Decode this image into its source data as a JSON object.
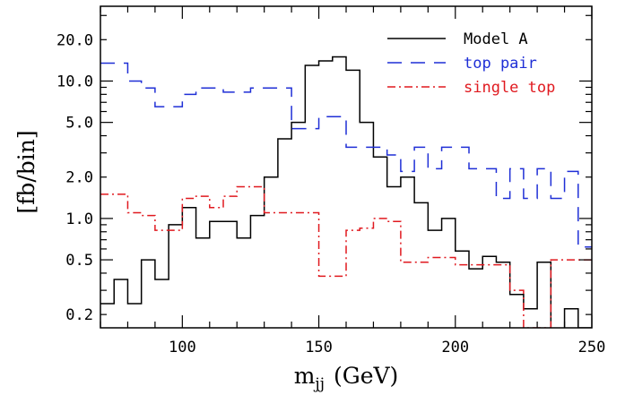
{
  "chart_data": {
    "type": "line",
    "title": "",
    "xlabel": "m_jj (GeV)",
    "xlabel_main": "m",
    "xlabel_sub": "jj",
    "xlabel_unit": "(GeV)",
    "ylabel": "[fb/bin]",
    "xlim": [
      70,
      250
    ],
    "ylim": [
      0.16,
      35
    ],
    "yscale": "log",
    "grid": false,
    "legend_position": "top-right",
    "x_ticks": [
      100,
      150,
      200,
      250
    ],
    "x_tick_labels": [
      "100",
      "150",
      "200",
      "250"
    ],
    "y_ticks": [
      0.2,
      0.5,
      1.0,
      2.0,
      5.0,
      10.0,
      20.0
    ],
    "y_tick_labels": [
      "0.2",
      "0.5",
      "1.0",
      "2.0",
      "5.0",
      "10.0",
      "20.0"
    ],
    "bin_width": 5,
    "bin_edges_start": 70,
    "series": [
      {
        "name": "Model A",
        "style": "solid",
        "color": "#000000",
        "values": [
          0.24,
          0.36,
          0.24,
          0.5,
          0.36,
          0.9,
          1.2,
          0.72,
          0.95,
          0.95,
          0.72,
          1.05,
          2.0,
          3.8,
          5.0,
          13.0,
          14.0,
          15.0,
          12.0,
          5.0,
          2.8,
          1.7,
          2.0,
          1.3,
          0.82,
          1.0,
          0.58,
          0.43,
          0.53,
          0.48,
          0.28,
          0.22,
          0.48,
          0.14,
          0.22,
          0.16
        ]
      },
      {
        "name": "top pair",
        "style": "dashed",
        "color": "#1f2fd6",
        "values": [
          13.5,
          13.5,
          10.0,
          8.9,
          6.5,
          6.5,
          8.0,
          8.9,
          8.9,
          8.3,
          8.3,
          8.9,
          8.9,
          8.9,
          4.5,
          4.5,
          5.5,
          5.5,
          3.3,
          3.3,
          3.3,
          2.9,
          2.2,
          3.3,
          2.3,
          3.3,
          3.3,
          2.3,
          2.3,
          1.4,
          2.3,
          1.4,
          2.3,
          1.4,
          2.2,
          0.62
        ]
      },
      {
        "name": "single top",
        "style": "dash-dot",
        "color": "#e0191f",
        "values": [
          1.5,
          1.5,
          1.1,
          1.05,
          0.82,
          0.82,
          1.4,
          1.45,
          1.2,
          1.45,
          1.7,
          1.7,
          1.1,
          1.1,
          1.1,
          1.1,
          0.38,
          0.38,
          0.82,
          0.85,
          1.0,
          0.95,
          0.48,
          0.48,
          0.52,
          0.52,
          0.46,
          0.46,
          0.46,
          0.46,
          0.3,
          0.16,
          0.16,
          0.5,
          0.5,
          0.5
        ]
      }
    ]
  }
}
